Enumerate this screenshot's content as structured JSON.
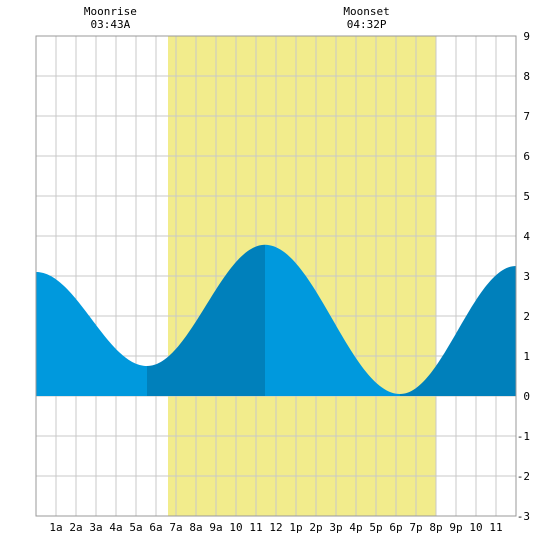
{
  "chart_data": {
    "type": "area",
    "x_range": [
      0,
      24
    ],
    "ylim": [
      -3,
      9
    ],
    "y_ticks": [
      -3,
      -2,
      -1,
      0,
      1,
      2,
      3,
      4,
      5,
      6,
      7,
      8,
      9
    ],
    "x_tick_labels": [
      "1a",
      "2a",
      "3a",
      "4a",
      "5a",
      "6a",
      "7a",
      "8a",
      "9a",
      "10",
      "11",
      "12",
      "1p",
      "2p",
      "3p",
      "4p",
      "5p",
      "6p",
      "7p",
      "8p",
      "9p",
      "10",
      "11"
    ],
    "grid": true,
    "daylight_band": {
      "start_hour": 6.6,
      "end_hour": 20.0,
      "color": "#f2ec8c"
    },
    "fill_colors": {
      "falling": "#0099dd",
      "rising": "#0080bb"
    },
    "tide_extremes": [
      {
        "hour": 0.0,
        "height": 3.1
      },
      {
        "hour": 5.55,
        "height": 0.75
      },
      {
        "hour": 11.45,
        "height": 3.78
      },
      {
        "hour": 18.2,
        "height": 0.05
      },
      {
        "hour": 24.0,
        "height": 3.25
      }
    ],
    "annotations": [
      {
        "title": "Moonrise",
        "time": "03:43A",
        "hour": 3.72
      },
      {
        "title": "Moonset",
        "time": "04:32P",
        "hour": 16.53
      }
    ]
  }
}
